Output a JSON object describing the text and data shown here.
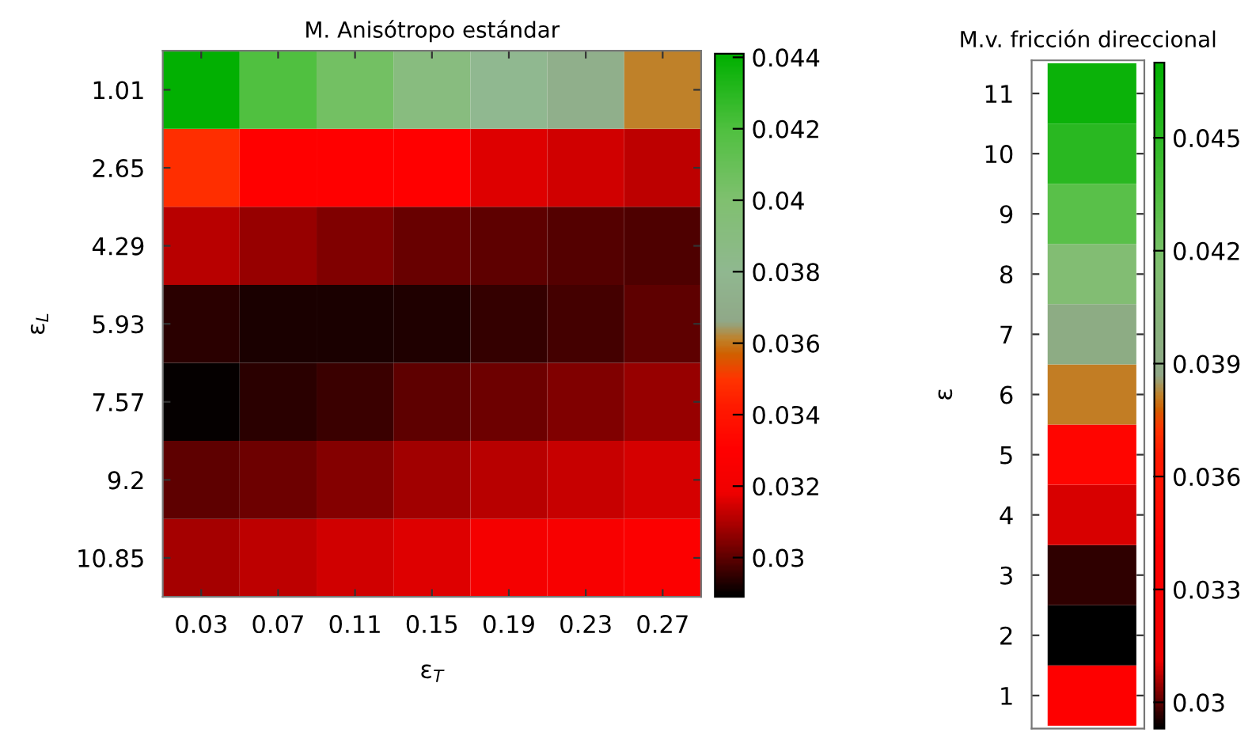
{
  "chart_data": [
    {
      "type": "heatmap",
      "title": "M. Anisótropo estándar",
      "xlabel": "ε$_{T}$",
      "ylabel": "ε$_{L}$",
      "categories": [
        "0.03",
        "0.07",
        "0.11",
        "0.15",
        "0.19",
        "0.23",
        "0.27"
      ],
      "y_categories": [
        "1.01",
        "2.65",
        "4.29",
        "5.93",
        "7.57",
        "9.2",
        "10.85"
      ],
      "cells": [
        [
          0.044,
          0.042,
          0.0405,
          0.039,
          0.038,
          0.0372,
          0.0361
        ],
        [
          0.0348,
          0.033,
          0.033,
          0.033,
          0.0316,
          0.0314,
          0.0312
        ],
        [
          0.0311,
          0.0307,
          0.0304,
          0.0301,
          0.03,
          0.0299,
          0.0298
        ],
        [
          0.0294,
          0.0292,
          0.0292,
          0.0293,
          0.0295,
          0.0297,
          0.03
        ],
        [
          0.029,
          0.0294,
          0.0296,
          0.03,
          0.0302,
          0.0304,
          0.0307
        ],
        [
          0.03,
          0.0302,
          0.0305,
          0.0308,
          0.0311,
          0.0313,
          0.0315
        ],
        [
          0.0309,
          0.0312,
          0.0314,
          0.0316,
          0.0322,
          0.0325,
          0.0328
        ]
      ],
      "clim": [
        0.0289,
        0.0441
      ],
      "cticks": [
        0.03,
        0.032,
        0.034,
        0.036,
        0.038,
        0.04,
        0.042,
        0.044
      ]
    },
    {
      "type": "heatmap",
      "title": "M.v. fricción direccional",
      "ylabel": "ε",
      "categories": [
        null
      ],
      "y_categories": [
        "11",
        "10",
        "9",
        "8",
        "7",
        "6",
        "5",
        "4",
        "3",
        "2",
        "1"
      ],
      "cells": [
        [
          0.0465
        ],
        [
          0.0452
        ],
        [
          0.0431
        ],
        [
          0.0413
        ],
        [
          0.0392
        ],
        [
          0.0381
        ],
        [
          0.0346
        ],
        [
          0.0309
        ],
        [
          0.0297
        ],
        [
          0.0293
        ],
        [
          0.034
        ]
      ],
      "clim": [
        0.0293,
        0.047
      ],
      "cticks": [
        0.03,
        0.033,
        0.036,
        0.039,
        0.042,
        0.045
      ],
      "tick_labels": "y"
    }
  ]
}
